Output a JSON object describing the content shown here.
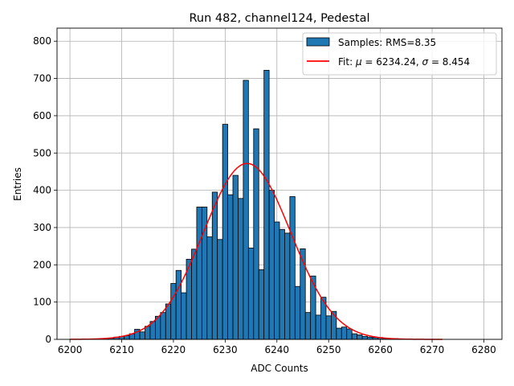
{
  "chart_data": {
    "type": "bar",
    "title": "Run 482, channel124, Pedestal",
    "xlabel": "ADC Counts",
    "ylabel": "Entries",
    "xlim": [
      6197.5,
      6283.5
    ],
    "ylim": [
      0,
      835
    ],
    "xticks": [
      6200,
      6210,
      6220,
      6230,
      6240,
      6250,
      6260,
      6270,
      6280
    ],
    "yticks": [
      0,
      100,
      200,
      300,
      400,
      500,
      600,
      700,
      800
    ],
    "grid": true,
    "legend_position": "top-right",
    "bin_width": 1,
    "histogram": {
      "name": "Samples: RMS=8.35",
      "color": "#1f77b4",
      "edgecolor": "#000000",
      "x": [
        6207,
        6208,
        6209,
        6210,
        6211,
        6212,
        6213,
        6214,
        6215,
        6216,
        6217,
        6218,
        6219,
        6220,
        6221,
        6222,
        6223,
        6224,
        6225,
        6226,
        6227,
        6228,
        6229,
        6230,
        6231,
        6232,
        6233,
        6234,
        6235,
        6236,
        6237,
        6238,
        6239,
        6240,
        6241,
        6242,
        6243,
        6244,
        6245,
        6246,
        6247,
        6248,
        6249,
        6250,
        6251,
        6252,
        6253,
        6254,
        6255,
        6256,
        6257,
        6258,
        6259,
        6260,
        6261,
        6262,
        6263,
        6264
      ],
      "values": [
        2,
        3,
        6,
        8,
        10,
        15,
        27,
        20,
        35,
        48,
        62,
        72,
        95,
        150,
        185,
        125,
        215,
        242,
        355,
        355,
        275,
        395,
        268,
        577,
        388,
        440,
        378,
        695,
        245,
        565,
        187,
        722,
        400,
        315,
        295,
        285,
        383,
        142,
        243,
        72,
        170,
        65,
        113,
        63,
        75,
        30,
        33,
        28,
        15,
        12,
        8,
        6,
        5,
        5,
        3,
        2,
        2,
        1
      ]
    },
    "fit": {
      "name": "Fit: $\\mu$ = 6234.24, $\\sigma$ = 8.454",
      "label_parts": [
        "Fit: ",
        "μ",
        " = 6234.24, ",
        "σ",
        " = 8.454"
      ],
      "color": "#ff0000",
      "mu": 6234.24,
      "sigma": 8.454,
      "amplitude": 472,
      "x_range": [
        6200,
        6272
      ]
    }
  }
}
